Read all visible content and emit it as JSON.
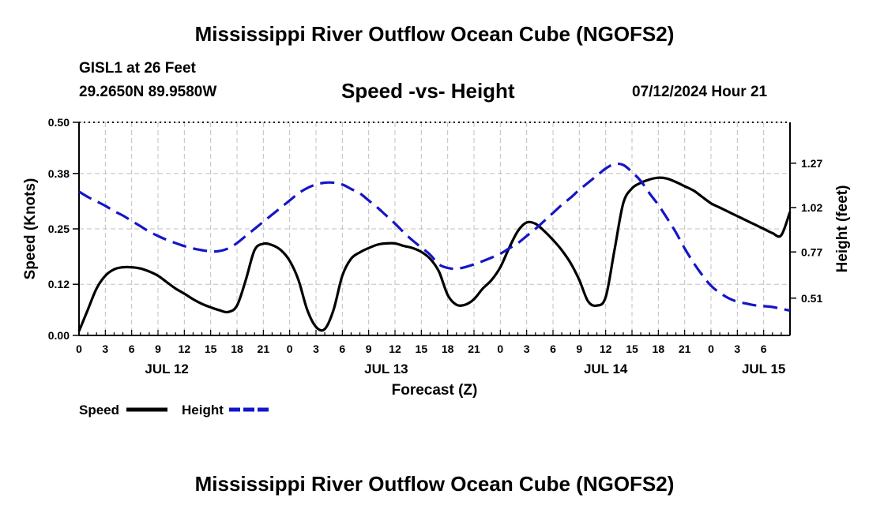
{
  "page": {
    "title_top": "Mississippi River Outflow Ocean Cube (NGOFS2)",
    "title_bottom": "Mississippi River Outflow Ocean Cube (NGOFS2)",
    "station": "GISL1 at 26 Feet",
    "coords": "29.2650N  89.9580W",
    "subtitle": "Speed -vs- Height",
    "datetime": "07/12/2024 Hour 21"
  },
  "colors": {
    "speed": "#000000",
    "height": "#1515c8",
    "grid": "#c0c0c0"
  },
  "chart_data": {
    "type": "line",
    "xlabel": "Forecast (Z)",
    "ylabel_left": "Speed (Knots)",
    "ylabel_right": "Height (feet)",
    "x_range_hours": [
      0,
      81
    ],
    "x_ticks": [
      {
        "h": 0,
        "label": "0"
      },
      {
        "h": 3,
        "label": "3"
      },
      {
        "h": 6,
        "label": "6"
      },
      {
        "h": 9,
        "label": "9"
      },
      {
        "h": 12,
        "label": "12"
      },
      {
        "h": 15,
        "label": "15"
      },
      {
        "h": 18,
        "label": "18"
      },
      {
        "h": 21,
        "label": "21"
      },
      {
        "h": 24,
        "label": "0"
      },
      {
        "h": 27,
        "label": "3"
      },
      {
        "h": 30,
        "label": "6"
      },
      {
        "h": 33,
        "label": "9"
      },
      {
        "h": 36,
        "label": "12"
      },
      {
        "h": 39,
        "label": "15"
      },
      {
        "h": 42,
        "label": "18"
      },
      {
        "h": 45,
        "label": "21"
      },
      {
        "h": 48,
        "label": "0"
      },
      {
        "h": 51,
        "label": "3"
      },
      {
        "h": 54,
        "label": "6"
      },
      {
        "h": 57,
        "label": "9"
      },
      {
        "h": 60,
        "label": "12"
      },
      {
        "h": 63,
        "label": "15"
      },
      {
        "h": 66,
        "label": "18"
      },
      {
        "h": 69,
        "label": "21"
      },
      {
        "h": 72,
        "label": "0"
      },
      {
        "h": 75,
        "label": "3"
      },
      {
        "h": 78,
        "label": "6"
      }
    ],
    "day_labels": [
      {
        "h": 10,
        "label": "JUL 12"
      },
      {
        "h": 35,
        "label": "JUL 13"
      },
      {
        "h": 60,
        "label": "JUL 14"
      },
      {
        "h": 78,
        "label": "JUL 15"
      }
    ],
    "ylim_left": [
      0,
      0.5
    ],
    "yticks_left": [
      "0.00",
      "0.12",
      "0.25",
      "0.38",
      "0.50"
    ],
    "ylim_right": [
      0.3,
      1.5
    ],
    "yticks_right": [
      {
        "v": 0.51,
        "label": "0.51"
      },
      {
        "v": 0.77,
        "label": "0.77"
      },
      {
        "v": 1.02,
        "label": "1.02"
      },
      {
        "v": 1.27,
        "label": "1.27"
      }
    ],
    "series": [
      {
        "name": "Speed",
        "axis": "left",
        "style": "solid",
        "x": [
          0,
          1,
          2,
          3,
          4,
          5,
          6,
          7,
          8,
          9,
          10,
          11,
          12,
          13,
          14,
          15,
          16,
          17,
          18,
          19,
          20,
          21,
          22,
          23,
          24,
          25,
          26,
          27,
          28,
          29,
          30,
          31,
          32,
          33,
          34,
          35,
          36,
          37,
          38,
          39,
          40,
          41,
          42,
          43,
          44,
          45,
          46,
          47,
          48,
          49,
          50,
          51,
          52,
          53,
          54,
          55,
          56,
          57,
          58,
          59,
          60,
          61,
          62,
          63,
          64,
          65,
          66,
          67,
          68,
          69,
          70,
          71,
          72,
          73,
          74,
          75,
          76,
          77,
          78,
          79,
          80,
          81
        ],
        "values": [
          0.01,
          0.06,
          0.11,
          0.14,
          0.155,
          0.16,
          0.16,
          0.157,
          0.15,
          0.14,
          0.125,
          0.11,
          0.098,
          0.085,
          0.074,
          0.066,
          0.059,
          0.055,
          0.07,
          0.13,
          0.2,
          0.215,
          0.212,
          0.2,
          0.175,
          0.13,
          0.06,
          0.02,
          0.015,
          0.06,
          0.14,
          0.18,
          0.195,
          0.205,
          0.213,
          0.216,
          0.216,
          0.21,
          0.205,
          0.196,
          0.18,
          0.15,
          0.095,
          0.072,
          0.072,
          0.085,
          0.11,
          0.13,
          0.16,
          0.205,
          0.245,
          0.265,
          0.262,
          0.245,
          0.224,
          0.2,
          0.17,
          0.13,
          0.08,
          0.07,
          0.09,
          0.2,
          0.31,
          0.345,
          0.358,
          0.366,
          0.37,
          0.368,
          0.36,
          0.35,
          0.34,
          0.325,
          0.31,
          0.3,
          0.29,
          0.28,
          0.27,
          0.26,
          0.25,
          0.24,
          0.235,
          0.29
        ]
      },
      {
        "name": "Height",
        "axis": "right",
        "style": "dashed",
        "x": [
          0,
          1,
          2,
          3,
          4,
          5,
          6,
          7,
          8,
          9,
          10,
          11,
          12,
          13,
          14,
          15,
          16,
          17,
          18,
          19,
          20,
          21,
          22,
          23,
          24,
          25,
          26,
          27,
          28,
          29,
          30,
          31,
          32,
          33,
          34,
          35,
          36,
          37,
          38,
          39,
          40,
          41,
          42,
          43,
          44,
          45,
          46,
          47,
          48,
          49,
          50,
          51,
          52,
          53,
          54,
          55,
          56,
          57,
          58,
          59,
          60,
          61,
          62,
          63,
          64,
          65,
          66,
          67,
          68,
          69,
          70,
          71,
          72,
          73,
          74,
          75,
          76,
          77,
          78,
          79,
          80,
          81
        ],
        "values": [
          1.11,
          1.08,
          1.055,
          1.03,
          1.0,
          0.975,
          0.945,
          0.915,
          0.885,
          0.86,
          0.838,
          0.82,
          0.803,
          0.79,
          0.78,
          0.773,
          0.775,
          0.79,
          0.82,
          0.86,
          0.9,
          0.94,
          0.98,
          1.02,
          1.06,
          1.1,
          1.13,
          1.15,
          1.16,
          1.16,
          1.15,
          1.125,
          1.1,
          1.06,
          1.02,
          0.975,
          0.93,
          0.88,
          0.835,
          0.795,
          0.755,
          0.7,
          0.68,
          0.675,
          0.685,
          0.7,
          0.718,
          0.738,
          0.76,
          0.79,
          0.82,
          0.86,
          0.9,
          0.945,
          0.99,
          1.035,
          1.075,
          1.12,
          1.16,
          1.2,
          1.24,
          1.265,
          1.26,
          1.22,
          1.17,
          1.1,
          1.035,
          0.96,
          0.88,
          0.79,
          0.71,
          0.64,
          0.58,
          0.54,
          0.51,
          0.49,
          0.48,
          0.47,
          0.465,
          0.46,
          0.45,
          0.44
        ]
      }
    ],
    "legend": [
      {
        "label": "Speed",
        "style": "solid"
      },
      {
        "label": "Height",
        "style": "dashed"
      }
    ],
    "legend_position": "bottom-left",
    "grid": true
  }
}
